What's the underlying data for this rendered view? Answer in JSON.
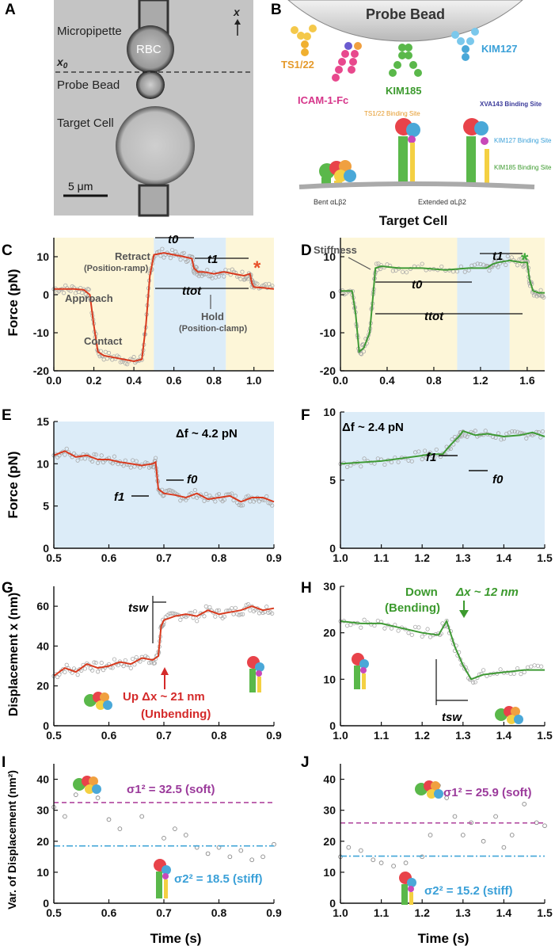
{
  "colors": {
    "yellow": "#fdf6d8",
    "blue": "#dcecf8",
    "red": "#d83a1e",
    "green": "#3f9a35",
    "magenta": "#b0479e",
    "cyan": "#42a6d8",
    "orange": "#f07a3a",
    "grey": "#888888",
    "dark": "#333333"
  },
  "panelA": {
    "letter": "A",
    "micropipette": "Micropipette",
    "rbc": "RBC",
    "probe": "Probe Bead",
    "target": "Target Cell",
    "axis": "x",
    "x0": "x",
    "x0sub": "0",
    "scalebar": "5 μm"
  },
  "panelB": {
    "letter": "B",
    "probe": "Probe Bead",
    "ts": "TS1/22",
    "icam": "ICAM-1-Fc",
    "kim185": "KIM185",
    "kim127": "KIM127",
    "site_ts": "TS1/22 Binding Site",
    "site_xva": "XVA143 Binding Site",
    "site_kim127": "KIM127 Binding Site",
    "site_kim185": "KIM185 Binding Site",
    "bent": "Bent αLβ2",
    "extended": "Extended αLβ2",
    "cell": "Target Cell"
  },
  "panelC": {
    "letter": "C",
    "ylabel": "Force (pN)",
    "approach": "Approach",
    "contact": "Contact",
    "retract": "Retract",
    "retract_sub": "(Position-ramp)",
    "hold": "Hold",
    "hold_sub": "(Position-clamp)",
    "t0": "t0",
    "t1": "t1",
    "ttot": "ttot",
    "star": "*"
  },
  "panelD": {
    "letter": "D",
    "stiffness": "Stiffness",
    "t0": "t0",
    "t1": "t1",
    "ttot": "ttot",
    "star": "*"
  },
  "panelE": {
    "letter": "E",
    "ylabel": "Force (pN)",
    "df": "Δf ~ 4.2 pN",
    "f0": "f0",
    "f1": "f1"
  },
  "panelF": {
    "letter": "F",
    "df": "Δf ~ 2.4 pN",
    "f0": "f0",
    "f1": "f1"
  },
  "panelG": {
    "letter": "G",
    "ylabel": "Displacement x (nm)",
    "tsw": "tsw",
    "up": "Up  Δx ~ 21 nm",
    "unbending": "(Unbending)"
  },
  "panelH": {
    "letter": "H",
    "down": "Down",
    "bending": "(Bending)",
    "dx": "Δx ~ 12 nm",
    "tsw": "tsw"
  },
  "panelI": {
    "letter": "I",
    "ylabel": "Var. of Displacement (nm²)",
    "xlabel": "Time (s)",
    "s1": "σ1² = 32.5 (soft)",
    "s2": "σ2² = 18.5 (stiff)"
  },
  "panelJ": {
    "letter": "J",
    "xlabel": "Time (s)",
    "s1": "σ1² = 25.9 (soft)",
    "s2": "σ2² = 15.2  (stiff)"
  },
  "chart_data": [
    {
      "panel": "C",
      "type": "line",
      "ylabel": "Force (pN)",
      "xlim": [
        0,
        1.1
      ],
      "ylim": [
        -20,
        15
      ],
      "xticks": [
        0.0,
        0.2,
        0.4,
        0.6,
        0.8,
        1.0
      ],
      "yticks": [
        -20,
        -10,
        0,
        10
      ],
      "x": [
        0,
        0.05,
        0.1,
        0.15,
        0.18,
        0.2,
        0.22,
        0.25,
        0.3,
        0.35,
        0.4,
        0.44,
        0.46,
        0.48,
        0.5,
        0.55,
        0.6,
        0.65,
        0.69,
        0.7,
        0.72,
        0.75,
        0.8,
        0.85,
        0.9,
        0.95,
        0.98,
        0.99,
        1.0,
        1.05,
        1.1
      ],
      "y": [
        1.5,
        1.5,
        1.5,
        1.3,
        0,
        -8,
        -15,
        -16,
        -16.5,
        -17,
        -17.5,
        -17,
        -8,
        5,
        10.5,
        11,
        10.5,
        10,
        9.5,
        7,
        6,
        6,
        5.5,
        6,
        5.5,
        5,
        5.5,
        3,
        2,
        1.8,
        1.5
      ],
      "shading": [
        {
          "from": 0,
          "to": 0.5,
          "color": "yellow"
        },
        {
          "from": 0.5,
          "to": 0.86,
          "color": "blue"
        },
        {
          "from": 0.86,
          "to": 1.1,
          "color": "yellow"
        }
      ]
    },
    {
      "panel": "D",
      "type": "line",
      "xlim": [
        0,
        1.75
      ],
      "ylim": [
        -20,
        15
      ],
      "xticks": [
        0.0,
        0.4,
        0.8,
        1.2,
        1.6
      ],
      "yticks": [
        -20,
        -10,
        0,
        10
      ],
      "x": [
        0,
        0.1,
        0.13,
        0.16,
        0.2,
        0.25,
        0.28,
        0.3,
        0.35,
        0.5,
        0.7,
        0.9,
        1.1,
        1.25,
        1.3,
        1.35,
        1.45,
        1.55,
        1.6,
        1.62,
        1.65,
        1.7,
        1.75
      ],
      "y": [
        1,
        1,
        -5,
        -15,
        -14,
        -10,
        0,
        7,
        7.5,
        7,
        7,
        6.5,
        7,
        7,
        8,
        8.5,
        9,
        8.5,
        8.5,
        4,
        1,
        0.5,
        0.5
      ],
      "shading": [
        {
          "from": 0,
          "to": 1.0,
          "color": "yellow"
        },
        {
          "from": 1.0,
          "to": 1.45,
          "color": "blue"
        },
        {
          "from": 1.45,
          "to": 1.75,
          "color": "yellow"
        }
      ]
    },
    {
      "panel": "E",
      "type": "line",
      "ylabel": "Force (pN)",
      "xlim": [
        0.5,
        0.9
      ],
      "ylim": [
        0,
        15
      ],
      "xticks": [
        0.5,
        0.6,
        0.7,
        0.8,
        0.9
      ],
      "yticks": [
        0,
        5,
        10,
        15
      ],
      "x": [
        0.5,
        0.52,
        0.54,
        0.56,
        0.58,
        0.6,
        0.62,
        0.64,
        0.66,
        0.68,
        0.685,
        0.69,
        0.7,
        0.72,
        0.74,
        0.76,
        0.78,
        0.8,
        0.82,
        0.84,
        0.86,
        0.88,
        0.9
      ],
      "y": [
        11,
        11.5,
        10.8,
        11,
        10.5,
        10.5,
        10.2,
        10,
        9.8,
        10,
        10.2,
        7,
        6.5,
        6.3,
        6,
        6.5,
        5.8,
        6,
        6.2,
        5.5,
        6,
        6,
        5.5
      ]
    },
    {
      "panel": "F",
      "type": "line",
      "xlim": [
        1.0,
        1.5
      ],
      "ylim": [
        0,
        10
      ],
      "xticks": [
        1.0,
        1.1,
        1.2,
        1.3,
        1.4,
        1.5
      ],
      "yticks": [
        0,
        5,
        10
      ],
      "x": [
        1.0,
        1.05,
        1.1,
        1.15,
        1.2,
        1.22,
        1.25,
        1.27,
        1.29,
        1.3,
        1.33,
        1.36,
        1.4,
        1.44,
        1.47,
        1.5
      ],
      "y": [
        6.2,
        6.3,
        6.4,
        6.6,
        6.8,
        6.9,
        6.9,
        7.6,
        8.2,
        8.6,
        8.3,
        8.4,
        8.2,
        8.3,
        8.5,
        8.2
      ]
    },
    {
      "panel": "G",
      "type": "line",
      "ylabel": "Displacement x (nm)",
      "xlim": [
        0.5,
        0.9
      ],
      "ylim": [
        0,
        70
      ],
      "xticks": [
        0.5,
        0.6,
        0.7,
        0.8,
        0.9
      ],
      "yticks": [
        0,
        20,
        40,
        60
      ],
      "x": [
        0.5,
        0.52,
        0.54,
        0.56,
        0.58,
        0.6,
        0.62,
        0.64,
        0.66,
        0.68,
        0.69,
        0.695,
        0.7,
        0.72,
        0.74,
        0.76,
        0.78,
        0.8,
        0.82,
        0.84,
        0.86,
        0.88,
        0.9
      ],
      "y": [
        25,
        29,
        27,
        31,
        29,
        30,
        32,
        31,
        34,
        33,
        35,
        50,
        53,
        55,
        56,
        55,
        58,
        56,
        57,
        58,
        60,
        58,
        59
      ]
    },
    {
      "panel": "H",
      "type": "line",
      "xlim": [
        1.0,
        1.5
      ],
      "ylim": [
        0,
        30
      ],
      "xticks": [
        1.0,
        1.1,
        1.2,
        1.3,
        1.4,
        1.5
      ],
      "yticks": [
        0,
        10,
        20,
        30
      ],
      "x": [
        1.0,
        1.05,
        1.1,
        1.15,
        1.2,
        1.24,
        1.26,
        1.28,
        1.3,
        1.32,
        1.35,
        1.4,
        1.45,
        1.5
      ],
      "y": [
        22.5,
        22,
        22,
        21,
        20,
        19.5,
        22.5,
        17,
        13,
        10,
        11,
        11.5,
        12,
        12
      ]
    },
    {
      "panel": "I",
      "type": "scatter",
      "xlabel": "Time (s)",
      "ylabel": "Var. of Displacement (nm²)",
      "xlim": [
        0.5,
        0.9
      ],
      "ylim": [
        0,
        45
      ],
      "xticks": [
        0.5,
        0.6,
        0.7,
        0.8,
        0.9
      ],
      "yticks": [
        0,
        10,
        20,
        30,
        40
      ],
      "x": [
        0.5,
        0.52,
        0.54,
        0.56,
        0.58,
        0.6,
        0.62,
        0.66,
        0.7,
        0.72,
        0.74,
        0.76,
        0.78,
        0.8,
        0.82,
        0.84,
        0.86,
        0.88,
        0.9
      ],
      "y": [
        31,
        28,
        35,
        38,
        34,
        27,
        24,
        28,
        21,
        24,
        22,
        18,
        16,
        18,
        15,
        17,
        14,
        15,
        19
      ],
      "hlines": [
        {
          "name": "σ1²",
          "value": 32.5,
          "color": "magenta",
          "style": "dashed"
        },
        {
          "name": "σ2²",
          "value": 18.5,
          "color": "cyan",
          "style": "dashdot"
        }
      ]
    },
    {
      "panel": "J",
      "type": "scatter",
      "xlabel": "Time (s)",
      "xlim": [
        1.0,
        1.5
      ],
      "ylim": [
        0,
        45
      ],
      "xticks": [
        1.0,
        1.1,
        1.2,
        1.3,
        1.4,
        1.5
      ],
      "yticks": [
        0,
        10,
        20,
        30,
        40
      ],
      "x": [
        1.0,
        1.02,
        1.05,
        1.08,
        1.1,
        1.13,
        1.16,
        1.2,
        1.22,
        1.24,
        1.26,
        1.28,
        1.3,
        1.32,
        1.35,
        1.38,
        1.4,
        1.42,
        1.45,
        1.48,
        1.5
      ],
      "y": [
        15,
        18,
        17,
        14,
        13,
        12,
        13,
        15,
        22,
        38,
        34,
        28,
        22,
        26,
        20,
        28,
        18,
        22,
        32,
        26,
        25
      ],
      "hlines": [
        {
          "name": "σ1²",
          "value": 25.9,
          "color": "magenta",
          "style": "dashed"
        },
        {
          "name": "σ2²",
          "value": 15.2,
          "color": "cyan",
          "style": "dashdot"
        }
      ]
    }
  ]
}
